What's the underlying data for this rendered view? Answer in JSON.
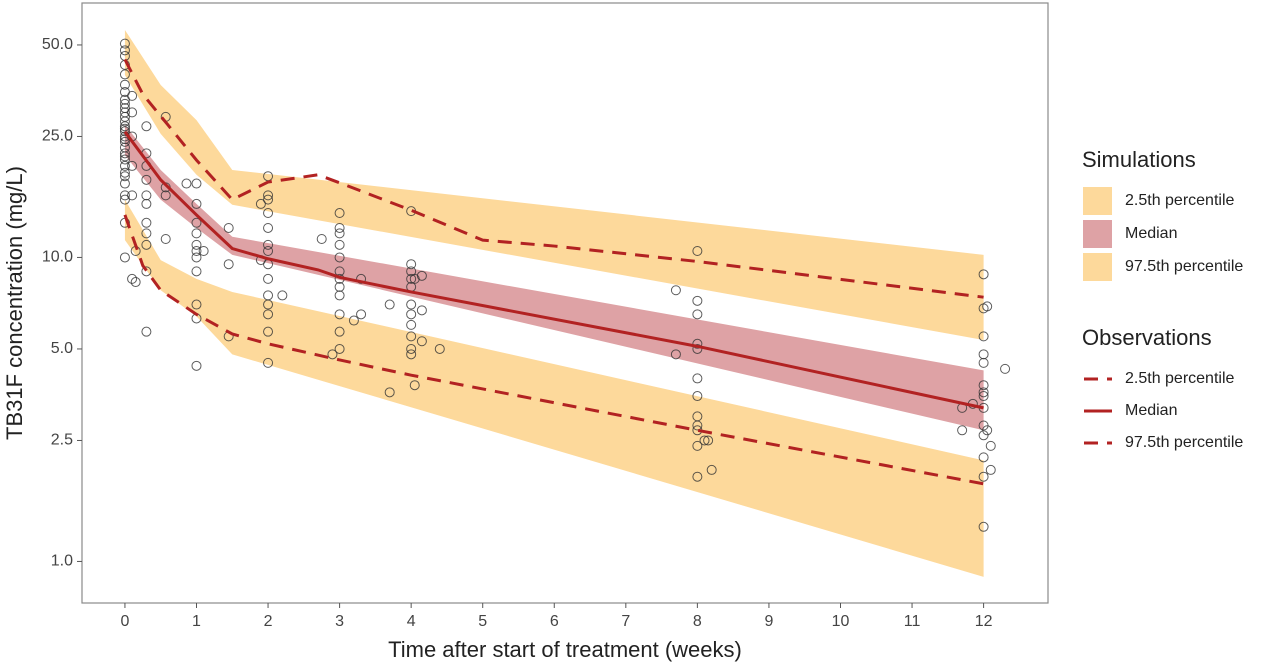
{
  "chart_data": {
    "type": "line",
    "x_label": "Time after start of treatment (weeks)",
    "y_label": "TB31F concentration (mg/L)",
    "xlim": [
      -0.6,
      12.9
    ],
    "ylim": [
      0.73,
      68.7
    ],
    "log_y": true,
    "grid": false,
    "legend_position": "right",
    "xticks": [
      0,
      1,
      2,
      3,
      4,
      5,
      6,
      7,
      8,
      9,
      10,
      11,
      12
    ],
    "yticks": [
      {
        "value": 1,
        "label": "1.0"
      },
      {
        "value": 2.5,
        "label": "2.5"
      },
      {
        "value": 5,
        "label": "5.0"
      },
      {
        "value": 10,
        "label": "10.0"
      },
      {
        "value": 25,
        "label": "25.0"
      },
      {
        "value": 50,
        "label": "50.0"
      }
    ],
    "bands_title": "Simulations",
    "bands": [
      {
        "name": "2.5th percentile",
        "color": "#fdd99b",
        "x": [
          0,
          0.5,
          1,
          1.5,
          12
        ],
        "lower": [
          11.4,
          7.8,
          6.4,
          4.8,
          0.89
        ],
        "upper": [
          15.5,
          9.8,
          8.5,
          7.7,
          2.15
        ]
      },
      {
        "name": "Median",
        "color": "#dea2a5",
        "x": [
          0,
          0.5,
          1,
          1.5,
          12
        ],
        "lower": [
          21.7,
          15.5,
          12.5,
          10.2,
          2.7
        ],
        "upper": [
          27.3,
          19.4,
          15.0,
          11.7,
          4.25
        ]
      },
      {
        "name": "97.5th percentile",
        "color": "#fdd99b",
        "x": [
          0,
          0.5,
          1,
          1.5,
          12
        ],
        "lower": [
          39.8,
          25.5,
          18.7,
          14.9,
          5.35
        ],
        "upper": [
          56,
          36.9,
          28.3,
          19.4,
          10.2
        ]
      }
    ],
    "series_title": "Observations",
    "series": [
      {
        "name": "2.5th percentile",
        "color": "#b22222",
        "dashed": true,
        "x": [
          0,
          0.25,
          0.5,
          1,
          1.5,
          2,
          3,
          4,
          8,
          12
        ],
        "values": [
          13.8,
          9.4,
          7.8,
          6.5,
          5.6,
          5.2,
          4.6,
          4.1,
          2.7,
          1.8
        ]
      },
      {
        "name": "Median",
        "color": "#b22222",
        "dashed": false,
        "x": [
          0,
          0.5,
          1,
          1.5,
          2,
          2.7,
          3,
          4,
          8,
          12
        ],
        "values": [
          25.9,
          18.0,
          13.8,
          10.7,
          9.9,
          9.1,
          8.6,
          7.7,
          5.1,
          3.2
        ]
      },
      {
        "name": "97.5th percentile",
        "color": "#b22222",
        "dashed": true,
        "x": [
          0,
          0.25,
          0.6,
          1,
          1.5,
          2,
          2.7,
          3,
          4,
          5,
          6,
          8,
          12
        ],
        "values": [
          44.8,
          34.4,
          27.3,
          20.9,
          15.5,
          17.7,
          18.7,
          17.6,
          14.3,
          11.4,
          10.9,
          9.7,
          7.4
        ]
      }
    ],
    "points_color": "#333333",
    "observations": [
      [
        0,
        50.5
      ],
      [
        0,
        48
      ],
      [
        0,
        46
      ],
      [
        0,
        43
      ],
      [
        0,
        40
      ],
      [
        0,
        37
      ],
      [
        0,
        35
      ],
      [
        0,
        33
      ],
      [
        0,
        32
      ],
      [
        0,
        31
      ],
      [
        0,
        30
      ],
      [
        0,
        29
      ],
      [
        0,
        28
      ],
      [
        0,
        27
      ],
      [
        0,
        26.5
      ],
      [
        0,
        26
      ],
      [
        0,
        25
      ],
      [
        0,
        24.5
      ],
      [
        0,
        24
      ],
      [
        0,
        23
      ],
      [
        0,
        22
      ],
      [
        0,
        21.5
      ],
      [
        0,
        21
      ],
      [
        0,
        20
      ],
      [
        0,
        19
      ],
      [
        0,
        18.5
      ],
      [
        0,
        17.5
      ],
      [
        0,
        16
      ],
      [
        0,
        15.5
      ],
      [
        0,
        13
      ],
      [
        0,
        10
      ],
      [
        0.1,
        34
      ],
      [
        0.1,
        30
      ],
      [
        0.1,
        25
      ],
      [
        0.1,
        20
      ],
      [
        0.1,
        16
      ],
      [
        0.1,
        8.5
      ],
      [
        0.15,
        10.5
      ],
      [
        0.15,
        8.3
      ],
      [
        0.3,
        27
      ],
      [
        0.3,
        22
      ],
      [
        0.3,
        20
      ],
      [
        0.3,
        18
      ],
      [
        0.3,
        16
      ],
      [
        0.3,
        15
      ],
      [
        0.3,
        13
      ],
      [
        0.3,
        12
      ],
      [
        0.3,
        11
      ],
      [
        0.3,
        9
      ],
      [
        0.3,
        5.7
      ],
      [
        0.57,
        29
      ],
      [
        0.57,
        17
      ],
      [
        0.57,
        16
      ],
      [
        0.57,
        11.5
      ],
      [
        0.86,
        17.5
      ],
      [
        1,
        15
      ],
      [
        1,
        13
      ],
      [
        1,
        12
      ],
      [
        1,
        11
      ],
      [
        1,
        10.5
      ],
      [
        1,
        10
      ],
      [
        1,
        9
      ],
      [
        1,
        7
      ],
      [
        1,
        6.3
      ],
      [
        1,
        4.4
      ],
      [
        1,
        17.5
      ],
      [
        1.1,
        10.5
      ],
      [
        1.45,
        12.5
      ],
      [
        1.45,
        9.5
      ],
      [
        1.45,
        5.5
      ],
      [
        1.9,
        15
      ],
      [
        1.9,
        9.8
      ],
      [
        2,
        18.5
      ],
      [
        2,
        16
      ],
      [
        2,
        15.5
      ],
      [
        2,
        14
      ],
      [
        2,
        12.5
      ],
      [
        2,
        11
      ],
      [
        2,
        10.5
      ],
      [
        2,
        9.5
      ],
      [
        2,
        8.5
      ],
      [
        2,
        7.5
      ],
      [
        2,
        7
      ],
      [
        2,
        6.5
      ],
      [
        2,
        5.7
      ],
      [
        2,
        4.5
      ],
      [
        2.2,
        7.5
      ],
      [
        2.75,
        11.5
      ],
      [
        2.9,
        4.8
      ],
      [
        3,
        14
      ],
      [
        3,
        12.5
      ],
      [
        3,
        11
      ],
      [
        3,
        10
      ],
      [
        3,
        9
      ],
      [
        3,
        8.5
      ],
      [
        3,
        8
      ],
      [
        3,
        7.5
      ],
      [
        3,
        6.5
      ],
      [
        3,
        5.7
      ],
      [
        3,
        5
      ],
      [
        3,
        12
      ],
      [
        3.2,
        6.2
      ],
      [
        3.3,
        6.5
      ],
      [
        3.3,
        8.5
      ],
      [
        3.7,
        3.6
      ],
      [
        3.7,
        7
      ],
      [
        4,
        9.5
      ],
      [
        4,
        9
      ],
      [
        4,
        8.5
      ],
      [
        4,
        8
      ],
      [
        4,
        7
      ],
      [
        4,
        6.5
      ],
      [
        4,
        6
      ],
      [
        4,
        5.5
      ],
      [
        4,
        5
      ],
      [
        4,
        4.8
      ],
      [
        4,
        14.2
      ],
      [
        4.05,
        3.8
      ],
      [
        4.05,
        8.5
      ],
      [
        4.15,
        8.7
      ],
      [
        4.15,
        5.3
      ],
      [
        4.15,
        6.7
      ],
      [
        4.4,
        5
      ],
      [
        7.7,
        4.8
      ],
      [
        7.7,
        7.8
      ],
      [
        8,
        10.5
      ],
      [
        8,
        7.2
      ],
      [
        8,
        6.5
      ],
      [
        8,
        5.2
      ],
      [
        8,
        5
      ],
      [
        8,
        4
      ],
      [
        8,
        3.5
      ],
      [
        8,
        3
      ],
      [
        8,
        2.8
      ],
      [
        8,
        2.7
      ],
      [
        8,
        2.4
      ],
      [
        8,
        1.9
      ],
      [
        8.1,
        2.5
      ],
      [
        8.15,
        2.5
      ],
      [
        8.2,
        2
      ],
      [
        11.7,
        2.7
      ],
      [
        11.7,
        3.2
      ],
      [
        11.85,
        3.3
      ],
      [
        12,
        8.8
      ],
      [
        12,
        6.8
      ],
      [
        12,
        5.5
      ],
      [
        12,
        4.8
      ],
      [
        12,
        4.5
      ],
      [
        12,
        3.8
      ],
      [
        12,
        3.6
      ],
      [
        12,
        3.5
      ],
      [
        12,
        3.2
      ],
      [
        12,
        2.8
      ],
      [
        12,
        2.6
      ],
      [
        12,
        2.2
      ],
      [
        12,
        1.9
      ],
      [
        12,
        1.3
      ],
      [
        12.05,
        6.9
      ],
      [
        12.05,
        2.7
      ],
      [
        12.1,
        2.4
      ],
      [
        12.1,
        2.0
      ],
      [
        12.3,
        4.3
      ]
    ]
  }
}
